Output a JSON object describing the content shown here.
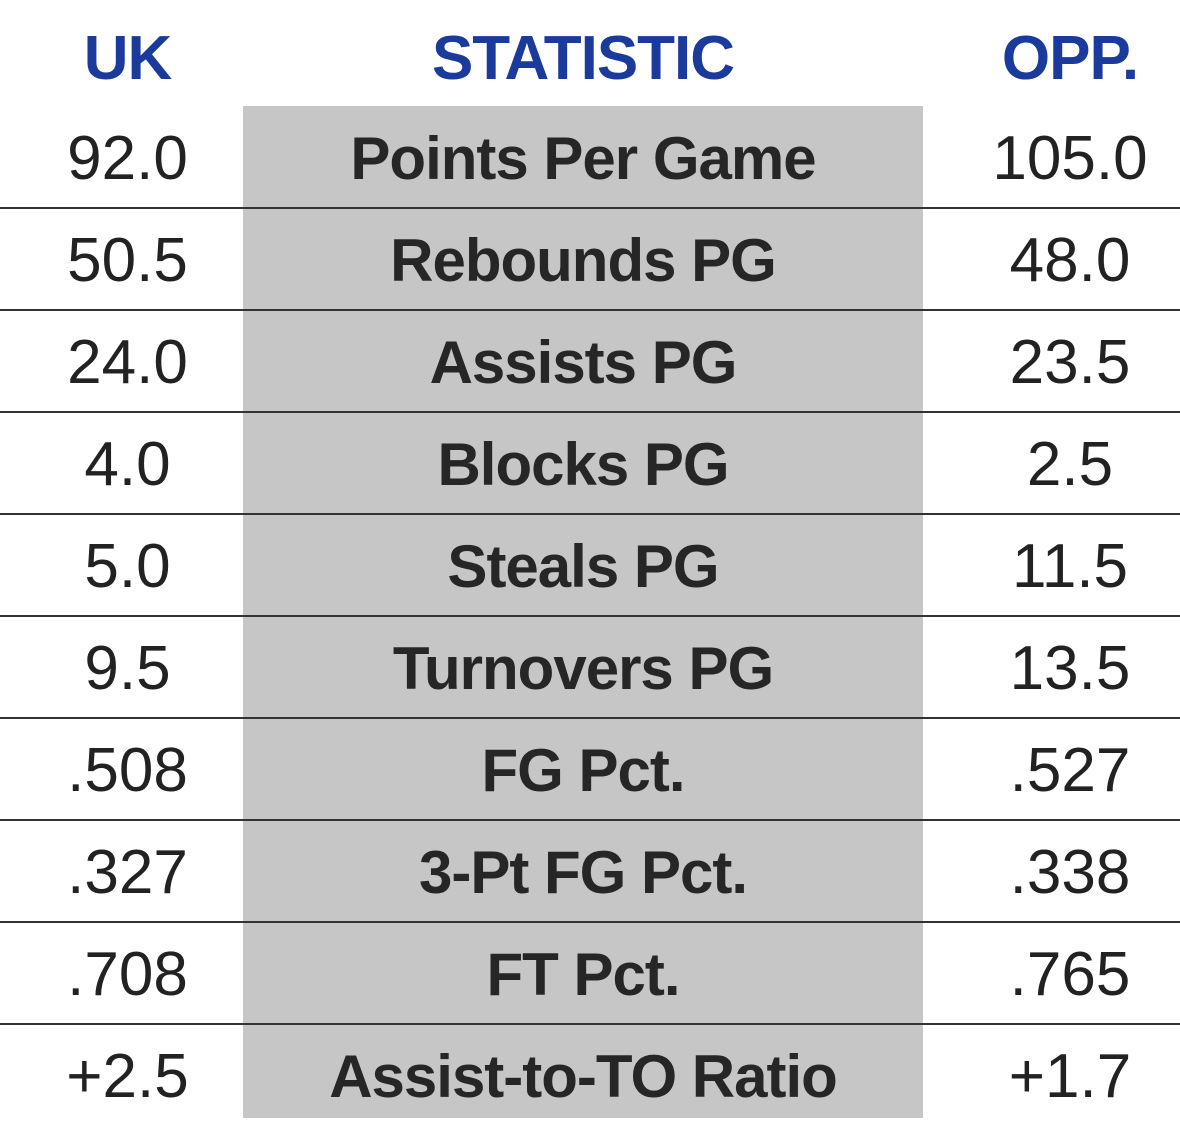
{
  "headers": {
    "team": "UK",
    "statistic": "STATISTIC",
    "opponent": "OPP."
  },
  "rows": [
    {
      "uk": "92.0",
      "stat": "Points Per Game",
      "opp": "105.0"
    },
    {
      "uk": "50.5",
      "stat": "Rebounds PG",
      "opp": "48.0"
    },
    {
      "uk": "24.0",
      "stat": "Assists PG",
      "opp": "23.5"
    },
    {
      "uk": "4.0",
      "stat": "Blocks PG",
      "opp": "2.5"
    },
    {
      "uk": "5.0",
      "stat": "Steals PG",
      "opp": "11.5"
    },
    {
      "uk": "9.5",
      "stat": "Turnovers PG",
      "opp": "13.5"
    },
    {
      "uk": ".508",
      "stat": "FG Pct.",
      "opp": ".527"
    },
    {
      "uk": ".327",
      "stat": "3-Pt FG Pct.",
      "opp": ".338"
    },
    {
      "uk": ".708",
      "stat": "FT Pct.",
      "opp": ".765"
    },
    {
      "uk": "+2.5",
      "stat": "Assist-to-TO Ratio",
      "opp": "+1.7"
    }
  ],
  "colors": {
    "header_text": "#1a3a9c",
    "stat_column_bg": "#c6c6c6",
    "divider": "#333333",
    "body_text": "#222222"
  }
}
